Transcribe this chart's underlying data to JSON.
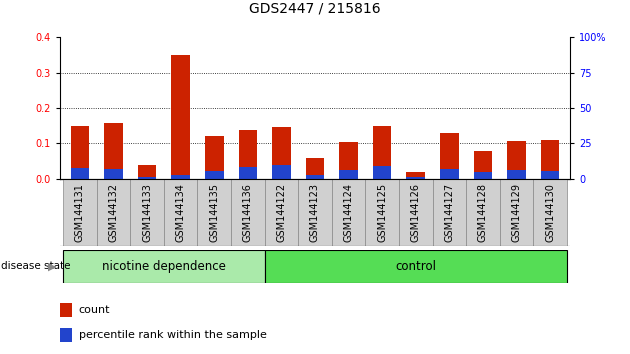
{
  "title": "GDS2447 / 215816",
  "samples": [
    "GSM144131",
    "GSM144132",
    "GSM144133",
    "GSM144134",
    "GSM144135",
    "GSM144136",
    "GSM144122",
    "GSM144123",
    "GSM144124",
    "GSM144125",
    "GSM144126",
    "GSM144127",
    "GSM144128",
    "GSM144129",
    "GSM144130"
  ],
  "count_values": [
    0.148,
    0.158,
    0.038,
    0.35,
    0.122,
    0.138,
    0.145,
    0.06,
    0.105,
    0.148,
    0.018,
    0.13,
    0.078,
    0.108,
    0.11
  ],
  "percentile_values": [
    0.03,
    0.028,
    0.005,
    0.012,
    0.022,
    0.032,
    0.038,
    0.012,
    0.025,
    0.035,
    0.005,
    0.028,
    0.018,
    0.025,
    0.022
  ],
  "group1_label": "nicotine dependence",
  "group2_label": "control",
  "group1_count": 6,
  "group2_count": 9,
  "disease_state_label": "disease state",
  "legend_count": "count",
  "legend_percentile": "percentile rank within the sample",
  "ylim_left": [
    0,
    0.4
  ],
  "ylim_right": [
    0,
    100
  ],
  "yticks_left": [
    0,
    0.1,
    0.2,
    0.3,
    0.4
  ],
  "yticks_right": [
    0,
    25,
    50,
    75,
    100
  ],
  "bar_color_count": "#cc2200",
  "bar_color_percentile": "#2244cc",
  "group1_color": "#aaeaaa",
  "group2_color": "#55dd55",
  "bar_width": 0.55,
  "title_fontsize": 10,
  "tick_fontsize": 7,
  "label_fontsize": 8,
  "fig_bg": "#ffffff"
}
